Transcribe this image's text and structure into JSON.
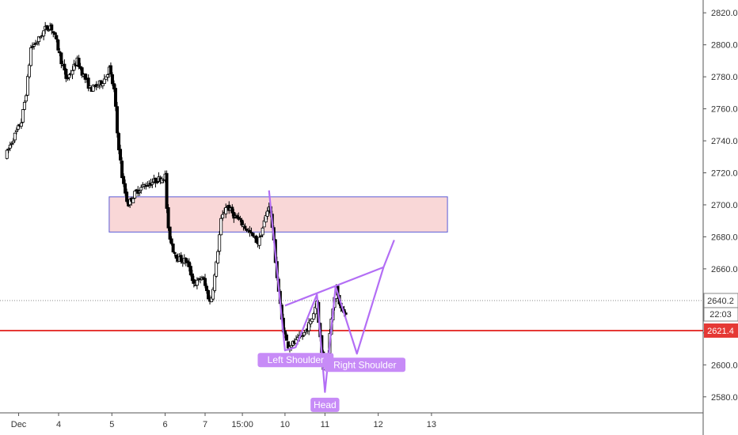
{
  "chart_data": {
    "type": "candlestick",
    "title": "",
    "xlabel": "",
    "ylabel": "",
    "ylim": [
      2570,
      2828
    ],
    "y_ticks": [
      "2580.0",
      "2600.0",
      "2620.0",
      "2640.0",
      "2660.0",
      "2680.0",
      "2700.0",
      "2720.0",
      "2740.0",
      "2760.0",
      "2780.0",
      "2800.0",
      "2820.0"
    ],
    "x_range": [
      -0.1,
      13.1
    ],
    "x_ticks": [
      {
        "x": 0.25,
        "label": "Dec"
      },
      {
        "x": 1.0,
        "label": "4"
      },
      {
        "x": 2.0,
        "label": "5"
      },
      {
        "x": 3.0,
        "label": "6"
      },
      {
        "x": 3.75,
        "label": "7"
      },
      {
        "x": 4.45,
        "label": "15:00"
      },
      {
        "x": 5.25,
        "label": "10"
      },
      {
        "x": 6.0,
        "label": "11"
      },
      {
        "x": 7.0,
        "label": "12"
      },
      {
        "x": 8.0,
        "label": "13"
      }
    ],
    "price_path": [
      [
        0.0,
        2730
      ],
      [
        0.1,
        2738
      ],
      [
        0.2,
        2745
      ],
      [
        0.3,
        2752
      ],
      [
        0.4,
        2772
      ],
      [
        0.48,
        2798
      ],
      [
        0.6,
        2802
      ],
      [
        0.75,
        2810
      ],
      [
        0.85,
        2812
      ],
      [
        0.95,
        2803
      ],
      [
        1.05,
        2790
      ],
      [
        1.15,
        2778
      ],
      [
        1.25,
        2784
      ],
      [
        1.35,
        2790
      ],
      [
        1.45,
        2782
      ],
      [
        1.6,
        2772
      ],
      [
        1.75,
        2775
      ],
      [
        1.85,
        2778
      ],
      [
        1.95,
        2785
      ],
      [
        2.05,
        2770
      ],
      [
        2.1,
        2745
      ],
      [
        2.2,
        2715
      ],
      [
        2.3,
        2700
      ],
      [
        2.45,
        2708
      ],
      [
        2.6,
        2712
      ],
      [
        2.75,
        2714
      ],
      [
        2.88,
        2716
      ],
      [
        3.0,
        2718
      ],
      [
        3.05,
        2685
      ],
      [
        3.15,
        2672
      ],
      [
        3.25,
        2666
      ],
      [
        3.4,
        2665
      ],
      [
        3.55,
        2650
      ],
      [
        3.7,
        2655
      ],
      [
        3.85,
        2638
      ],
      [
        3.95,
        2660
      ],
      [
        4.05,
        2690
      ],
      [
        4.15,
        2700
      ],
      [
        4.3,
        2693
      ],
      [
        4.45,
        2688
      ],
      [
        4.6,
        2682
      ],
      [
        4.75,
        2676
      ],
      [
        4.85,
        2688
      ],
      [
        4.95,
        2700
      ],
      [
        5.0,
        2690
      ],
      [
        5.1,
        2655
      ],
      [
        5.2,
        2625
      ],
      [
        5.3,
        2612
      ],
      [
        5.45,
        2614
      ],
      [
        5.6,
        2619
      ],
      [
        5.75,
        2628
      ],
      [
        5.85,
        2640
      ],
      [
        5.9,
        2620
      ],
      [
        5.97,
        2598
      ],
      [
        6.05,
        2605
      ],
      [
        6.12,
        2630
      ],
      [
        6.2,
        2648
      ],
      [
        6.3,
        2635
      ],
      [
        6.4,
        2630
      ]
    ],
    "boxes": [
      {
        "x0": 1.95,
        "x1": 8.3,
        "y0": 2683,
        "y1": 2705
      }
    ],
    "horizontal_lines": [
      {
        "y": 2621.4,
        "label": "2621.4",
        "color": "#e53935",
        "style": "solid"
      },
      {
        "y": 2640.2,
        "label": "2640.2",
        "style": "dotted"
      }
    ],
    "countdown_label": "22:03",
    "pattern": {
      "name": "head and shoulders (inverse)",
      "path": [
        [
          4.95,
          2709
        ],
        [
          5.25,
          2609
        ],
        [
          5.45,
          2611
        ],
        [
          5.85,
          2644
        ],
        [
          6.0,
          2583
        ],
        [
          6.2,
          2649
        ],
        [
          6.6,
          2607
        ],
        [
          7.1,
          2661
        ],
        [
          7.3,
          2678
        ]
      ],
      "neckline": [
        [
          5.25,
          2637
        ],
        [
          7.1,
          2661
        ]
      ],
      "labels": [
        {
          "text": "Left Shoulder",
          "x": 5.45,
          "y": 2603
        },
        {
          "text": "Head",
          "x": 6.0,
          "y": 2575
        },
        {
          "text": "Right Shoulder",
          "x": 6.75,
          "y": 2600
        }
      ]
    }
  },
  "colors": {
    "up_candle": "#ffffff",
    "down_candle": "#000000",
    "candle_outline": "#000000",
    "box_fill": "#f8d0d0",
    "box_stroke": "#5b5bd6",
    "support_line": "#e53935",
    "pattern": "#b36ef5",
    "label_bg": "#c78bf7",
    "axis_text": "#333333",
    "tag_bg": "#ffffff"
  }
}
